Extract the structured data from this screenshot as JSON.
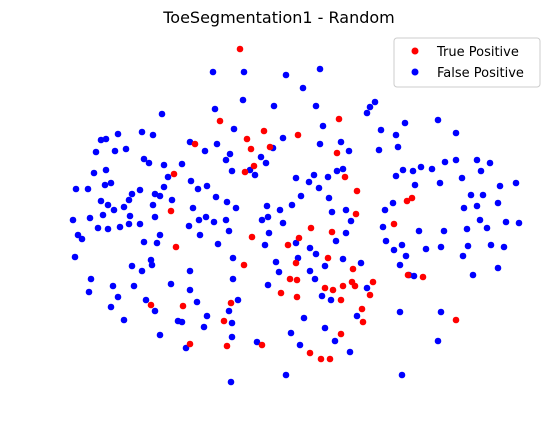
{
  "chart_data": {
    "type": "scatter",
    "title": "ToeSegmentation1 - Random",
    "xlabel": "",
    "ylabel": "",
    "axes_visible": false,
    "grid": false,
    "legend_position": "top-right",
    "series": [
      {
        "name": "True Positive",
        "color": "#ff0000",
        "points": [
          [
            240,
            49
          ],
          [
            220,
            121
          ],
          [
            339,
            119
          ],
          [
            247,
            139
          ],
          [
            264,
            131
          ],
          [
            298,
            135
          ],
          [
            195,
            144
          ],
          [
            251,
            149
          ],
          [
            270,
            147
          ],
          [
            337,
            153
          ],
          [
            245,
            172
          ],
          [
            174,
            174
          ],
          [
            254,
            166
          ],
          [
            345,
            177
          ],
          [
            357,
            191
          ],
          [
            412,
            198
          ],
          [
            407,
            201
          ],
          [
            171,
            211
          ],
          [
            356,
            214
          ],
          [
            299,
            238
          ],
          [
            311,
            228
          ],
          [
            332,
            232
          ],
          [
            252,
            237
          ],
          [
            176,
            247
          ],
          [
            288,
            245
          ],
          [
            394,
            224
          ],
          [
            244,
            265
          ],
          [
            328,
            258
          ],
          [
            296,
            263
          ],
          [
            353,
            269
          ],
          [
            290,
            279
          ],
          [
            297,
            280
          ],
          [
            352,
            282
          ],
          [
            373,
            282
          ],
          [
            325,
            288
          ],
          [
            333,
            290
          ],
          [
            343,
            286
          ],
          [
            355,
            286
          ],
          [
            281,
            293
          ],
          [
            297,
            297
          ],
          [
            341,
            300
          ],
          [
            370,
            295
          ],
          [
            151,
            305
          ],
          [
            183,
            306
          ],
          [
            231,
            303
          ],
          [
            362,
            309
          ],
          [
            224,
            321
          ],
          [
            363,
            322
          ],
          [
            456,
            320
          ],
          [
            341,
            334
          ],
          [
            190,
            344
          ],
          [
            227,
            346
          ],
          [
            262,
            345
          ],
          [
            310,
            353
          ],
          [
            321,
            359
          ],
          [
            330,
            359
          ],
          [
            423,
            277
          ],
          [
            408,
            275
          ]
        ]
      },
      {
        "name": "False Positive",
        "color": "#0000ff",
        "points": [
          [
            213,
            72
          ],
          [
            244,
            72
          ],
          [
            286,
            75
          ],
          [
            320,
            69
          ],
          [
            162,
            114
          ],
          [
            215,
            109
          ],
          [
            243,
            100
          ],
          [
            274,
            106
          ],
          [
            303,
            88
          ],
          [
            316,
            106
          ],
          [
            370,
            107
          ],
          [
            375,
            102
          ],
          [
            367,
            113
          ],
          [
            438,
            120
          ],
          [
            405,
            123
          ],
          [
            381,
            130
          ],
          [
            396,
            135
          ],
          [
            456,
            133
          ],
          [
            106,
            139
          ],
          [
            101,
            140
          ],
          [
            118,
            134
          ],
          [
            142,
            132
          ],
          [
            153,
            135
          ],
          [
            234,
            129
          ],
          [
            190,
            142
          ],
          [
            205,
            151
          ],
          [
            217,
            144
          ],
          [
            230,
            154
          ],
          [
            283,
            138
          ],
          [
            273,
            148
          ],
          [
            96,
            152
          ],
          [
            115,
            151
          ],
          [
            126,
            149
          ],
          [
            144,
            159
          ],
          [
            149,
            163
          ],
          [
            164,
            165
          ],
          [
            168,
            177
          ],
          [
            182,
            164
          ],
          [
            226,
            160
          ],
          [
            232,
            171
          ],
          [
            261,
            157
          ],
          [
            266,
            163
          ],
          [
            250,
            170
          ],
          [
            255,
            175
          ],
          [
            320,
            144
          ],
          [
            323,
            126
          ],
          [
            341,
            142
          ],
          [
            349,
            151
          ],
          [
            343,
            169
          ],
          [
            337,
            171
          ],
          [
            328,
            177
          ],
          [
            314,
            175
          ],
          [
            309,
            182
          ],
          [
            296,
            178
          ],
          [
            379,
            150
          ],
          [
            398,
            147
          ],
          [
            403,
            170
          ],
          [
            396,
            176
          ],
          [
            413,
            171
          ],
          [
            421,
            167
          ],
          [
            432,
            169
          ],
          [
            445,
            162
          ],
          [
            456,
            160
          ],
          [
            440,
            183
          ],
          [
            415,
            185
          ],
          [
            462,
            178
          ],
          [
            477,
            160
          ],
          [
            481,
            171
          ],
          [
            490,
            163
          ],
          [
            516,
            183
          ],
          [
            500,
            186
          ],
          [
            483,
            195
          ],
          [
            498,
            203
          ],
          [
            106,
            170
          ],
          [
            94,
            173
          ],
          [
            88,
            189
          ],
          [
            76,
            189
          ],
          [
            105,
            185
          ],
          [
            111,
            183
          ],
          [
            101,
            201
          ],
          [
            108,
            205
          ],
          [
            114,
            210
          ],
          [
            132,
            194
          ],
          [
            129,
            200
          ],
          [
            124,
            207
          ],
          [
            140,
            190
          ],
          [
            155,
            194
          ],
          [
            164,
            187
          ],
          [
            172,
            200
          ],
          [
            160,
            196
          ],
          [
            191,
            181
          ],
          [
            198,
            189
          ],
          [
            207,
            186
          ],
          [
            216,
            197
          ],
          [
            153,
            205
          ],
          [
            193,
            208
          ],
          [
            227,
            202
          ],
          [
            236,
            208
          ],
          [
            130,
            216
          ],
          [
            103,
            215
          ],
          [
            90,
            218
          ],
          [
            73,
            220
          ],
          [
            78,
            235
          ],
          [
            98,
            228
          ],
          [
            82,
            239
          ],
          [
            108,
            229
          ],
          [
            120,
            227
          ],
          [
            129,
            224
          ],
          [
            140,
            224
          ],
          [
            155,
            217
          ],
          [
            189,
            226
          ],
          [
            199,
            220
          ],
          [
            206,
            217
          ],
          [
            214,
            222
          ],
          [
            226,
            220
          ],
          [
            229,
            231
          ],
          [
            200,
            235
          ],
          [
            218,
            244
          ],
          [
            267,
            206
          ],
          [
            268,
            217
          ],
          [
            280,
            210
          ],
          [
            283,
            223
          ],
          [
            292,
            205
          ],
          [
            301,
            196
          ],
          [
            319,
            188
          ],
          [
            329,
            198
          ],
          [
            332,
            212
          ],
          [
            346,
            210
          ],
          [
            351,
            221
          ],
          [
            346,
            233
          ],
          [
            336,
            241
          ],
          [
            316,
            254
          ],
          [
            310,
            248
          ],
          [
            296,
            243
          ],
          [
            269,
            233
          ],
          [
            262,
            220
          ],
          [
            265,
            245
          ],
          [
            385,
            210
          ],
          [
            393,
            203
          ],
          [
            383,
            227
          ],
          [
            386,
            241
          ],
          [
            394,
            250
          ],
          [
            402,
            245
          ],
          [
            419,
            231
          ],
          [
            406,
            256
          ],
          [
            426,
            249
          ],
          [
            444,
            231
          ],
          [
            441,
            247
          ],
          [
            464,
            208
          ],
          [
            471,
            195
          ],
          [
            477,
            206
          ],
          [
            480,
            220
          ],
          [
            467,
            229
          ],
          [
            487,
            228
          ],
          [
            491,
            245
          ],
          [
            468,
            246
          ],
          [
            463,
            256
          ],
          [
            473,
            275
          ],
          [
            504,
            247
          ],
          [
            519,
            223
          ],
          [
            506,
            222
          ],
          [
            144,
            242
          ],
          [
            157,
            243
          ],
          [
            160,
            235
          ],
          [
            151,
            260
          ],
          [
            152,
            265
          ],
          [
            142,
            271
          ],
          [
            132,
            266
          ],
          [
            134,
            286
          ],
          [
            113,
            286
          ],
          [
            118,
            297
          ],
          [
            91,
            279
          ],
          [
            89,
            292
          ],
          [
            75,
            257
          ],
          [
            146,
            300
          ],
          [
            111,
            307
          ],
          [
            124,
            320
          ],
          [
            171,
            284
          ],
          [
            190,
            271
          ],
          [
            190,
            290
          ],
          [
            197,
            302
          ],
          [
            207,
            316
          ],
          [
            204,
            327
          ],
          [
            182,
            322
          ],
          [
            155,
            311
          ],
          [
            160,
            335
          ],
          [
            178,
            321
          ],
          [
            233,
            258
          ],
          [
            233,
            279
          ],
          [
            238,
            300
          ],
          [
            229,
            311
          ],
          [
            232,
            323
          ],
          [
            232,
            337
          ],
          [
            298,
            258
          ],
          [
            310,
            271
          ],
          [
            315,
            279
          ],
          [
            276,
            262
          ],
          [
            279,
            272
          ],
          [
            268,
            285
          ],
          [
            325,
            266
          ],
          [
            343,
            259
          ],
          [
            361,
            263
          ],
          [
            367,
            288
          ],
          [
            331,
            300
          ],
          [
            357,
            316
          ],
          [
            325,
            328
          ],
          [
            291,
            333
          ],
          [
            304,
            318
          ],
          [
            300,
            345
          ],
          [
            335,
            341
          ],
          [
            350,
            352
          ],
          [
            400,
            265
          ],
          [
            409,
            275
          ],
          [
            414,
            276
          ],
          [
            400,
            312
          ],
          [
            441,
            312
          ],
          [
            438,
            341
          ],
          [
            498,
            268
          ],
          [
            186,
            348
          ],
          [
            257,
            342
          ],
          [
            286,
            375
          ],
          [
            231,
            382
          ],
          [
            402,
            375
          ],
          [
            322,
            296
          ]
        ]
      }
    ]
  }
}
